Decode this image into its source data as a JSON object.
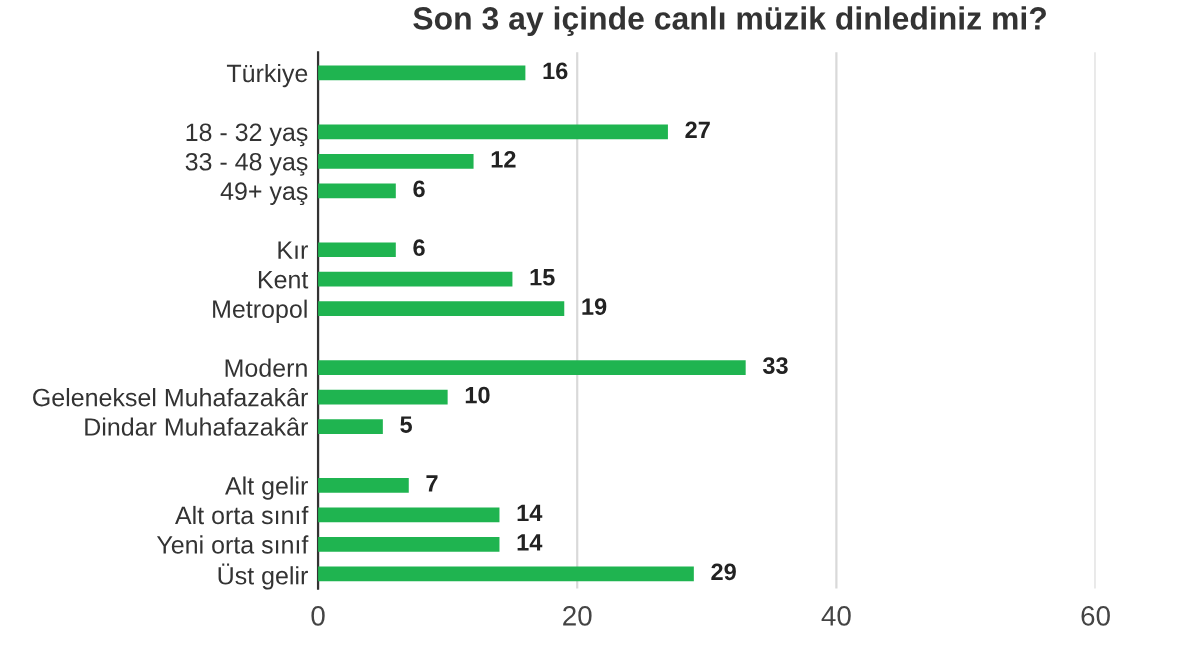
{
  "chart_data": {
    "type": "bar",
    "orientation": "horizontal",
    "title": "Son 3 ay içinde canlı müzik dinlediniz mi?",
    "categories": [
      "Türkiye",
      null,
      "18 - 32 yaş",
      "33 - 48 yaş",
      "49+ yaş",
      null,
      "Kır",
      "Kent",
      "Metropol",
      null,
      "Modern",
      "Geleneksel Muhafazakâr",
      "Dindar Muhafazakâr",
      null,
      "Alt gelir",
      "Alt orta sınıf",
      "Yeni orta sınıf",
      "Üst gelir"
    ],
    "values": [
      16,
      null,
      27,
      12,
      6,
      null,
      6,
      15,
      19,
      null,
      33,
      10,
      5,
      null,
      7,
      14,
      14,
      29
    ],
    "color": "#1fb450",
    "xlim": [
      0,
      60
    ],
    "xticks": [
      0,
      20,
      40,
      60
    ],
    "grid": "x",
    "data_labels": true
  }
}
